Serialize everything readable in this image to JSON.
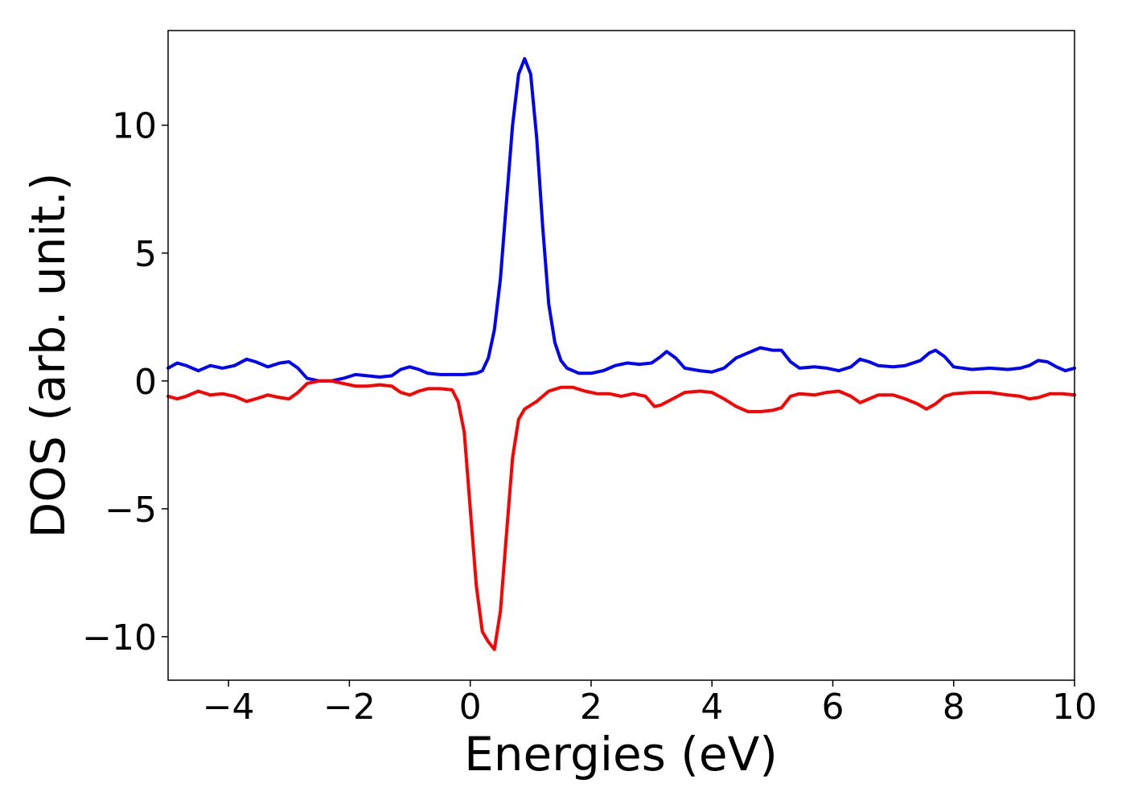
{
  "chart_data": {
    "type": "line",
    "title": "",
    "xlabel": "Energies (eV)",
    "ylabel": "DOS (arb. unit.)",
    "xlim": [
      -5,
      10
    ],
    "ylim": [
      -11.7,
      13.7
    ],
    "xticks": [
      -4,
      -2,
      0,
      2,
      4,
      6,
      8,
      10
    ],
    "xtick_labels": [
      "−4",
      "−2",
      "0",
      "2",
      "4",
      "6",
      "8",
      "10"
    ],
    "yticks": [
      -10,
      -5,
      0,
      5,
      10
    ],
    "ytick_labels": [
      "−10",
      "−5",
      "0",
      "5",
      "10"
    ],
    "grid": false,
    "legend": "none",
    "series": [
      {
        "color": "#0000ff",
        "points": [
          [
            -5.0,
            0.5
          ],
          [
            -4.85,
            0.7
          ],
          [
            -4.7,
            0.6
          ],
          [
            -4.5,
            0.4
          ],
          [
            -4.3,
            0.6
          ],
          [
            -4.1,
            0.5
          ],
          [
            -3.9,
            0.6
          ],
          [
            -3.7,
            0.85
          ],
          [
            -3.55,
            0.75
          ],
          [
            -3.35,
            0.55
          ],
          [
            -3.15,
            0.7
          ],
          [
            -3.0,
            0.75
          ],
          [
            -2.85,
            0.5
          ],
          [
            -2.7,
            0.1
          ],
          [
            -2.5,
            0.0
          ],
          [
            -2.3,
            0.0
          ],
          [
            -2.1,
            0.1
          ],
          [
            -1.9,
            0.25
          ],
          [
            -1.7,
            0.2
          ],
          [
            -1.5,
            0.15
          ],
          [
            -1.3,
            0.2
          ],
          [
            -1.15,
            0.45
          ],
          [
            -1.0,
            0.55
          ],
          [
            -0.85,
            0.45
          ],
          [
            -0.7,
            0.3
          ],
          [
            -0.5,
            0.25
          ],
          [
            -0.3,
            0.25
          ],
          [
            -0.1,
            0.25
          ],
          [
            0.1,
            0.3
          ],
          [
            0.2,
            0.4
          ],
          [
            0.3,
            0.9
          ],
          [
            0.4,
            2.0
          ],
          [
            0.5,
            4.0
          ],
          [
            0.6,
            7.0
          ],
          [
            0.7,
            10.0
          ],
          [
            0.8,
            12.0
          ],
          [
            0.9,
            12.6
          ],
          [
            1.0,
            12.0
          ],
          [
            1.1,
            9.5
          ],
          [
            1.2,
            6.0
          ],
          [
            1.3,
            3.0
          ],
          [
            1.4,
            1.5
          ],
          [
            1.5,
            0.8
          ],
          [
            1.6,
            0.5
          ],
          [
            1.8,
            0.3
          ],
          [
            2.0,
            0.3
          ],
          [
            2.2,
            0.4
          ],
          [
            2.4,
            0.6
          ],
          [
            2.6,
            0.7
          ],
          [
            2.8,
            0.65
          ],
          [
            3.0,
            0.7
          ],
          [
            3.15,
            0.95
          ],
          [
            3.25,
            1.15
          ],
          [
            3.4,
            0.9
          ],
          [
            3.55,
            0.5
          ],
          [
            3.8,
            0.4
          ],
          [
            4.0,
            0.35
          ],
          [
            4.2,
            0.5
          ],
          [
            4.4,
            0.9
          ],
          [
            4.6,
            1.1
          ],
          [
            4.8,
            1.3
          ],
          [
            5.0,
            1.2
          ],
          [
            5.15,
            1.2
          ],
          [
            5.3,
            0.75
          ],
          [
            5.45,
            0.5
          ],
          [
            5.7,
            0.55
          ],
          [
            5.9,
            0.5
          ],
          [
            6.1,
            0.4
          ],
          [
            6.3,
            0.55
          ],
          [
            6.45,
            0.85
          ],
          [
            6.6,
            0.75
          ],
          [
            6.75,
            0.6
          ],
          [
            7.0,
            0.55
          ],
          [
            7.2,
            0.6
          ],
          [
            7.45,
            0.8
          ],
          [
            7.6,
            1.1
          ],
          [
            7.7,
            1.2
          ],
          [
            7.85,
            0.95
          ],
          [
            8.0,
            0.55
          ],
          [
            8.3,
            0.45
          ],
          [
            8.6,
            0.5
          ],
          [
            8.9,
            0.45
          ],
          [
            9.1,
            0.5
          ],
          [
            9.25,
            0.6
          ],
          [
            9.4,
            0.8
          ],
          [
            9.55,
            0.75
          ],
          [
            9.7,
            0.55
          ],
          [
            9.85,
            0.4
          ],
          [
            10.0,
            0.5
          ]
        ]
      },
      {
        "color": "#ff0000",
        "points": [
          [
            -5.0,
            -0.6
          ],
          [
            -4.85,
            -0.7
          ],
          [
            -4.7,
            -0.6
          ],
          [
            -4.5,
            -0.4
          ],
          [
            -4.3,
            -0.55
          ],
          [
            -4.1,
            -0.5
          ],
          [
            -3.9,
            -0.6
          ],
          [
            -3.7,
            -0.8
          ],
          [
            -3.55,
            -0.7
          ],
          [
            -3.35,
            -0.55
          ],
          [
            -3.15,
            -0.65
          ],
          [
            -3.0,
            -0.7
          ],
          [
            -2.85,
            -0.45
          ],
          [
            -2.7,
            -0.1
          ],
          [
            -2.5,
            0.0
          ],
          [
            -2.3,
            0.0
          ],
          [
            -2.1,
            -0.1
          ],
          [
            -1.9,
            -0.2
          ],
          [
            -1.7,
            -0.2
          ],
          [
            -1.5,
            -0.15
          ],
          [
            -1.3,
            -0.2
          ],
          [
            -1.15,
            -0.45
          ],
          [
            -1.0,
            -0.55
          ],
          [
            -0.85,
            -0.4
          ],
          [
            -0.7,
            -0.3
          ],
          [
            -0.5,
            -0.3
          ],
          [
            -0.3,
            -0.35
          ],
          [
            -0.2,
            -0.8
          ],
          [
            -0.1,
            -2.0
          ],
          [
            0.0,
            -5.0
          ],
          [
            0.1,
            -8.0
          ],
          [
            0.2,
            -9.8
          ],
          [
            0.3,
            -10.2
          ],
          [
            0.4,
            -10.5
          ],
          [
            0.5,
            -9.0
          ],
          [
            0.6,
            -6.0
          ],
          [
            0.7,
            -3.0
          ],
          [
            0.8,
            -1.5
          ],
          [
            0.9,
            -1.1
          ],
          [
            1.0,
            -0.95
          ],
          [
            1.1,
            -0.8
          ],
          [
            1.2,
            -0.6
          ],
          [
            1.3,
            -0.4
          ],
          [
            1.5,
            -0.25
          ],
          [
            1.7,
            -0.25
          ],
          [
            1.9,
            -0.4
          ],
          [
            2.1,
            -0.5
          ],
          [
            2.3,
            -0.5
          ],
          [
            2.5,
            -0.6
          ],
          [
            2.7,
            -0.5
          ],
          [
            2.9,
            -0.6
          ],
          [
            3.05,
            -1.0
          ],
          [
            3.15,
            -0.95
          ],
          [
            3.35,
            -0.7
          ],
          [
            3.55,
            -0.45
          ],
          [
            3.8,
            -0.4
          ],
          [
            4.0,
            -0.45
          ],
          [
            4.2,
            -0.7
          ],
          [
            4.4,
            -1.0
          ],
          [
            4.6,
            -1.2
          ],
          [
            4.8,
            -1.2
          ],
          [
            5.0,
            -1.15
          ],
          [
            5.15,
            -1.05
          ],
          [
            5.3,
            -0.6
          ],
          [
            5.45,
            -0.5
          ],
          [
            5.7,
            -0.55
          ],
          [
            5.9,
            -0.45
          ],
          [
            6.1,
            -0.4
          ],
          [
            6.3,
            -0.6
          ],
          [
            6.45,
            -0.85
          ],
          [
            6.6,
            -0.7
          ],
          [
            6.75,
            -0.55
          ],
          [
            7.0,
            -0.55
          ],
          [
            7.2,
            -0.7
          ],
          [
            7.4,
            -0.9
          ],
          [
            7.55,
            -1.1
          ],
          [
            7.7,
            -0.9
          ],
          [
            7.85,
            -0.6
          ],
          [
            8.0,
            -0.5
          ],
          [
            8.3,
            -0.45
          ],
          [
            8.6,
            -0.45
          ],
          [
            8.9,
            -0.55
          ],
          [
            9.1,
            -0.6
          ],
          [
            9.25,
            -0.7
          ],
          [
            9.4,
            -0.65
          ],
          [
            9.6,
            -0.5
          ],
          [
            9.8,
            -0.5
          ],
          [
            10.0,
            -0.55
          ]
        ]
      }
    ]
  }
}
